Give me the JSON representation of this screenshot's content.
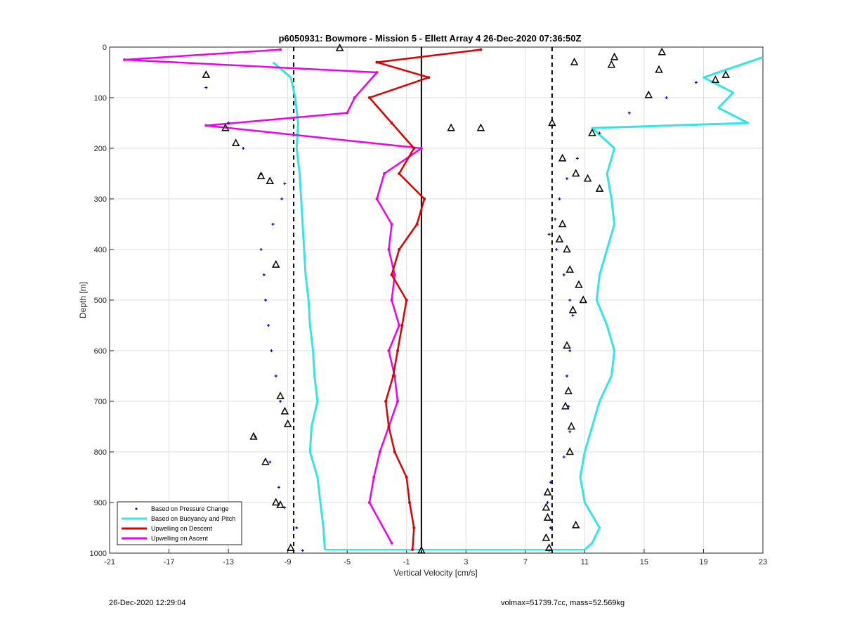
{
  "chart_data": {
    "type": "scatter",
    "title": "p6050931: Bowmore - Mission 5 - Ellett Array 4 26-Dec-2020 07:36:50Z",
    "xlabel": "Vertical Velocity [cm/s]",
    "ylabel": "Depth [m]",
    "xlim": [
      -21,
      23
    ],
    "ylim": [
      0,
      1000
    ],
    "y_reversed": true,
    "xticks": [
      -21,
      -17,
      -13,
      -9,
      -5,
      -1,
      3,
      7,
      11,
      15,
      19,
      23
    ],
    "yticks": [
      0,
      100,
      200,
      300,
      400,
      500,
      600,
      700,
      800,
      900,
      1000
    ],
    "grid": true,
    "legend_position": "bottom-left",
    "reference_lines": {
      "dashed_x": [
        -8.6,
        8.8
      ],
      "solid_x": [
        0.0
      ]
    },
    "series": [
      {
        "name": "Based on Pressure Change",
        "style": "dots",
        "color": "#0000cc",
        "descent": {
          "x": [
            -14.5,
            -13,
            -12,
            -10.8,
            -9.2,
            -9.4,
            -10,
            -10.8,
            -10.6,
            -10.5,
            -10.3,
            -10.1,
            -9.8,
            -9.5,
            -11.2,
            -10.2,
            -9.6,
            -9.2,
            -8.4,
            -8.0
          ],
          "y": [
            80,
            150,
            200,
            250,
            270,
            300,
            350,
            400,
            450,
            500,
            550,
            600,
            650,
            700,
            770,
            820,
            870,
            910,
            950,
            995
          ]
        },
        "ascent": {
          "x": [
            18.5,
            16.5,
            14,
            12,
            10.5,
            9.8,
            9.3,
            9.0,
            8.6,
            9.1,
            9.6,
            10.0,
            10.2,
            10.0,
            9.8,
            9.9,
            10.0,
            9.6,
            8.7,
            8.5,
            8.7,
            8.6
          ],
          "y": [
            70,
            100,
            130,
            170,
            220,
            260,
            300,
            340,
            370,
            400,
            450,
            500,
            530,
            600,
            650,
            710,
            760,
            810,
            860,
            900,
            950,
            995
          ]
        }
      },
      {
        "name": "Based on Buoyancy and Pitch",
        "style": "line",
        "color": "#33e5e5",
        "descent": {
          "x": [
            -10,
            -8.8,
            -8.5,
            -8.3,
            -8.4,
            -8.2,
            -8.1,
            -8.0,
            -7.9,
            -7.8,
            -7.6,
            -7.5,
            -7.3,
            -7.2,
            -7.0,
            -7.4,
            -7.5,
            -7.0,
            -6.8,
            -6.6,
            -6.5
          ],
          "y": [
            30,
            60,
            100,
            150,
            200,
            250,
            300,
            350,
            400,
            450,
            500,
            550,
            600,
            650,
            700,
            750,
            800,
            850,
            900,
            950,
            993
          ]
        },
        "ascent": {
          "x": [
            23,
            19,
            21,
            20,
            22,
            11.5,
            13,
            12.5,
            12.8,
            13.0,
            12.5,
            12.0,
            11.8,
            12.5,
            13.0,
            12.8,
            12.0,
            11.5,
            11.0,
            10.7,
            11.0,
            12.0,
            11.5,
            11.0
          ],
          "y": [
            20,
            60,
            90,
            120,
            150,
            160,
            200,
            250,
            300,
            350,
            400,
            450,
            500,
            550,
            600,
            650,
            700,
            750,
            800,
            850,
            900,
            950,
            980,
            993
          ]
        }
      },
      {
        "name": "Upwelling on Descent",
        "style": "line-dots",
        "color": "#dd0000",
        "x": [
          4.0,
          -3.0,
          0.5,
          -3.5,
          -2,
          -0.5,
          -1.5,
          0.2,
          -0.3,
          -1.5,
          -2.0,
          -1.0,
          -1.3,
          -1.6,
          -1.9,
          -2.4,
          -2.2,
          -1.8,
          -1.0,
          -0.8,
          -0.5,
          -0.6
        ],
        "y": [
          5,
          30,
          60,
          100,
          150,
          200,
          250,
          300,
          350,
          400,
          450,
          500,
          550,
          600,
          650,
          700,
          750,
          800,
          850,
          900,
          950,
          993
        ]
      },
      {
        "name": "Upwelling on Ascent",
        "style": "line-dots",
        "color": "#ee00ee",
        "x": [
          -9.5,
          -20,
          -3,
          -4.5,
          -5.0,
          -14.5,
          0.0,
          -2.5,
          -3.0,
          -2.0,
          -2.2,
          -1.8,
          -2.0,
          -1.5,
          -2.2,
          -1.8,
          -1.6,
          -2.2,
          -2.8,
          -3.2,
          -3.5,
          -2.0
        ],
        "y": [
          5,
          25,
          50,
          100,
          130,
          155,
          200,
          250,
          300,
          350,
          400,
          450,
          500,
          550,
          600,
          650,
          700,
          750,
          800,
          850,
          900,
          980
        ]
      }
    ],
    "markers": {
      "descent_left": {
        "x": [
          -14.5,
          -13.2,
          -12.5,
          -10.8,
          -10.2,
          -9.8,
          -9.5,
          -9.2,
          -9.0,
          -11.3,
          -10.5,
          -9.8,
          -9.5,
          -8.8
        ],
        "y": [
          55,
          160,
          190,
          255,
          265,
          430,
          690,
          720,
          745,
          770,
          820,
          900,
          905,
          990
        ]
      },
      "ascent_right": {
        "x": [
          16.2,
          13.0,
          12.8,
          10.3,
          16.0,
          20.5,
          19.8,
          15.3,
          11.5,
          9.5,
          10.4,
          11.2,
          12.0,
          9.5,
          9.3,
          9.8,
          10.0,
          10.6,
          10.9,
          10.2,
          9.8,
          9.9,
          9.7,
          10.1,
          10.0,
          8.5,
          8.4,
          8.5,
          8.4,
          10.4,
          8.6
        ],
        "y": [
          10,
          20,
          35,
          30,
          45,
          55,
          65,
          95,
          170,
          220,
          250,
          260,
          280,
          350,
          380,
          400,
          440,
          470,
          500,
          520,
          590,
          680,
          710,
          750,
          800,
          880,
          910,
          930,
          970,
          945,
          990
        ]
      },
      "center": {
        "x": [
          -5.5,
          2.0,
          4.0,
          8.8,
          0.0
        ],
        "y": [
          2,
          160,
          160,
          150,
          995
        ]
      }
    }
  },
  "footer": {
    "left": "26-Dec-2020 12:29:04",
    "right": "volmax=51739.7cc, mass=52.569kg"
  }
}
